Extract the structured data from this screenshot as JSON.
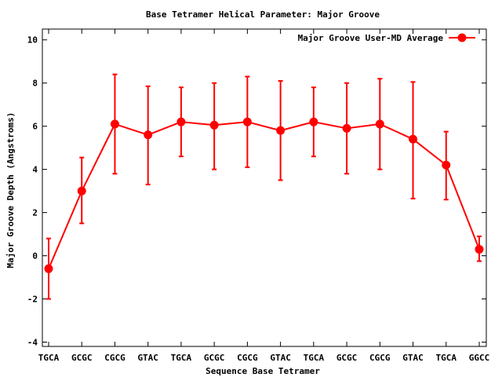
{
  "chart_data": {
    "type": "line",
    "title": "Base Tetramer Helical Parameter: Major Groove",
    "xlabel": "Sequence Base Tetramer",
    "ylabel": "Major Groove Depth (Angstroms)",
    "categories": [
      "TGCA",
      "GCGC",
      "CGCG",
      "GTAC",
      "TGCA",
      "GCGC",
      "CGCG",
      "GTAC",
      "TGCA",
      "GCGC",
      "CGCG",
      "GTAC",
      "TGCA",
      "GGCC"
    ],
    "ylim": [
      -4.2,
      10.5
    ],
    "yticks": [
      -4,
      -2,
      0,
      2,
      4,
      6,
      8,
      10
    ],
    "grid": false,
    "legend_position": "top-right",
    "series": [
      {
        "name": "Major Groove User-MD Average",
        "color": "#ff0000",
        "values": [
          -0.6,
          3.0,
          6.1,
          5.6,
          6.2,
          6.05,
          6.2,
          5.8,
          6.2,
          5.9,
          6.1,
          5.4,
          4.2,
          0.3
        ],
        "err_low": [
          -2.0,
          1.5,
          3.8,
          3.3,
          4.6,
          4.0,
          4.1,
          3.5,
          4.6,
          3.8,
          4.0,
          2.65,
          2.6,
          -0.25
        ],
        "err_high": [
          0.8,
          4.55,
          8.4,
          7.85,
          7.8,
          8.0,
          8.3,
          8.1,
          7.8,
          8.0,
          8.2,
          8.05,
          5.75,
          0.9
        ]
      }
    ]
  }
}
